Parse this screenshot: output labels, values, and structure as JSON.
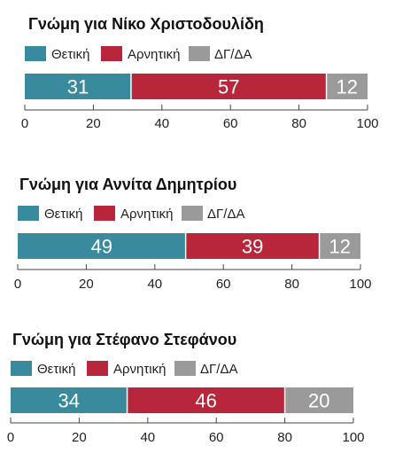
{
  "colors": {
    "positive": "#3a8a9d",
    "negative": "#b8263b",
    "neutral": "#9a9a9a",
    "axis": "#444444"
  },
  "chart_data": [
    {
      "type": "bar",
      "orientation": "horizontal-stacked",
      "title": "Γνώμη για Νίκο Χριστοδουλίδη",
      "series": [
        {
          "name": "Θετική",
          "value": 31,
          "color": "#3a8a9d"
        },
        {
          "name": "Αρνητική",
          "value": 57,
          "color": "#b8263b"
        },
        {
          "name": "ΔΓ/ΔΑ",
          "value": 12,
          "color": "#9a9a9a"
        }
      ],
      "xlim": [
        0,
        100
      ],
      "xticks": [
        "0",
        "20",
        "40",
        "60",
        "80",
        "100"
      ],
      "legend": "top-left"
    },
    {
      "type": "bar",
      "orientation": "horizontal-stacked",
      "title": "Γνώμη για Αννίτα Δημητρίου",
      "series": [
        {
          "name": "Θετική",
          "value": 49,
          "color": "#3a8a9d"
        },
        {
          "name": "Αρνητική",
          "value": 39,
          "color": "#b8263b"
        },
        {
          "name": "ΔΓ/ΔΑ",
          "value": 12,
          "color": "#9a9a9a"
        }
      ],
      "xlim": [
        0,
        100
      ],
      "xticks": [
        "0",
        "20",
        "40",
        "60",
        "80",
        "100"
      ],
      "legend": "top-left"
    },
    {
      "type": "bar",
      "orientation": "horizontal-stacked",
      "title": "Γνώμη για Στέφανο Στεφάνου",
      "series": [
        {
          "name": "Θετική",
          "value": 34,
          "color": "#3a8a9d"
        },
        {
          "name": "Αρνητική",
          "value": 46,
          "color": "#b8263b"
        },
        {
          "name": "ΔΓ/ΔΑ",
          "value": 20,
          "color": "#9a9a9a"
        }
      ],
      "xlim": [
        0,
        100
      ],
      "xticks": [
        "0",
        "20",
        "40",
        "60",
        "80",
        "100"
      ],
      "legend": "top-left"
    }
  ]
}
